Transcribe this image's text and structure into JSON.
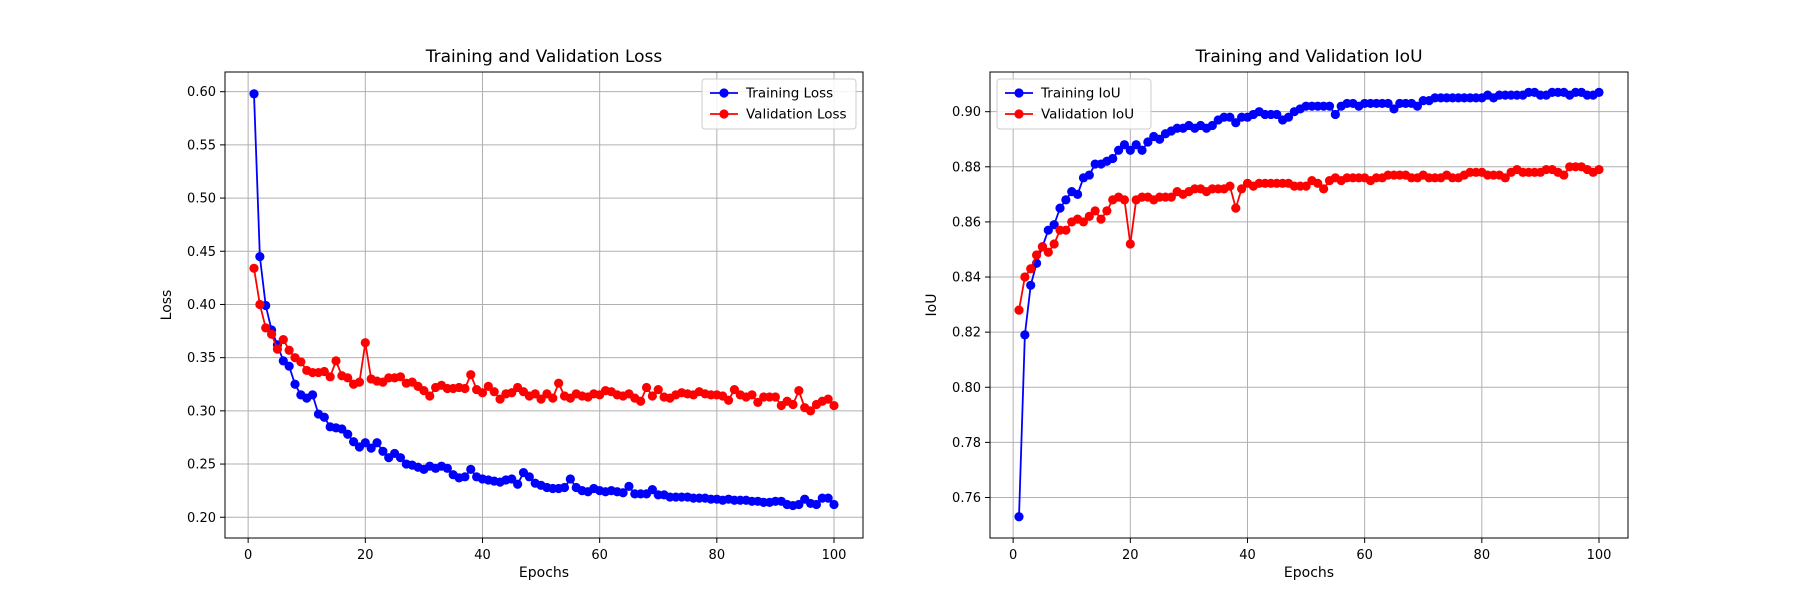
{
  "chart_data": [
    {
      "type": "line",
      "title": "Training and Validation Loss",
      "xlabel": "Epochs",
      "ylabel": "Loss",
      "xlim": [
        -3.95,
        104.95
      ],
      "ylim": [
        0.1805,
        0.6185
      ],
      "xticks": [
        0,
        20,
        40,
        60,
        80,
        100
      ],
      "xtick_labels": [
        "0",
        "20",
        "40",
        "60",
        "80",
        "100"
      ],
      "yticks": [
        0.2,
        0.25,
        0.3,
        0.35,
        0.4,
        0.45,
        0.5,
        0.55,
        0.6
      ],
      "ytick_labels": [
        "0.20",
        "0.25",
        "0.30",
        "0.35",
        "0.40",
        "0.45",
        "0.50",
        "0.55",
        "0.60"
      ],
      "grid": true,
      "legend_position": "top-right",
      "series": [
        {
          "name": "Training Loss",
          "color": "#0000ff",
          "x": [
            1,
            2,
            3,
            4,
            5,
            6,
            7,
            8,
            9,
            10,
            11,
            12,
            13,
            14,
            15,
            16,
            17,
            18,
            19,
            20,
            21,
            22,
            23,
            24,
            25,
            26,
            27,
            28,
            29,
            30,
            31,
            32,
            33,
            34,
            35,
            36,
            37,
            38,
            39,
            40,
            41,
            42,
            43,
            44,
            45,
            46,
            47,
            48,
            49,
            50,
            51,
            52,
            53,
            54,
            55,
            56,
            57,
            58,
            59,
            60,
            61,
            62,
            63,
            64,
            65,
            66,
            67,
            68,
            69,
            70,
            71,
            72,
            73,
            74,
            75,
            76,
            77,
            78,
            79,
            80,
            81,
            82,
            83,
            84,
            85,
            86,
            87,
            88,
            89,
            90,
            91,
            92,
            93,
            94,
            95,
            96,
            97,
            98,
            99,
            100
          ],
          "values": [
            0.598,
            0.445,
            0.399,
            0.376,
            0.362,
            0.347,
            0.342,
            0.325,
            0.315,
            0.312,
            0.315,
            0.297,
            0.294,
            0.285,
            0.284,
            0.283,
            0.278,
            0.271,
            0.266,
            0.27,
            0.265,
            0.27,
            0.262,
            0.256,
            0.26,
            0.256,
            0.25,
            0.249,
            0.247,
            0.245,
            0.248,
            0.246,
            0.248,
            0.246,
            0.24,
            0.237,
            0.238,
            0.245,
            0.238,
            0.236,
            0.235,
            0.234,
            0.233,
            0.235,
            0.236,
            0.231,
            0.242,
            0.238,
            0.232,
            0.23,
            0.228,
            0.227,
            0.227,
            0.228,
            0.236,
            0.228,
            0.225,
            0.224,
            0.227,
            0.225,
            0.224,
            0.225,
            0.224,
            0.223,
            0.229,
            0.222,
            0.222,
            0.222,
            0.226,
            0.221,
            0.221,
            0.219,
            0.219,
            0.219,
            0.219,
            0.218,
            0.218,
            0.218,
            0.217,
            0.217,
            0.216,
            0.217,
            0.216,
            0.216,
            0.216,
            0.215,
            0.215,
            0.214,
            0.214,
            0.215,
            0.215,
            0.212,
            0.211,
            0.212,
            0.217,
            0.213,
            0.212,
            0.218,
            0.218,
            0.212
          ]
        },
        {
          "name": "Validation Loss",
          "color": "#ff0000",
          "x": [
            1,
            2,
            3,
            4,
            5,
            6,
            7,
            8,
            9,
            10,
            11,
            12,
            13,
            14,
            15,
            16,
            17,
            18,
            19,
            20,
            21,
            22,
            23,
            24,
            25,
            26,
            27,
            28,
            29,
            30,
            31,
            32,
            33,
            34,
            35,
            36,
            37,
            38,
            39,
            40,
            41,
            42,
            43,
            44,
            45,
            46,
            47,
            48,
            49,
            50,
            51,
            52,
            53,
            54,
            55,
            56,
            57,
            58,
            59,
            60,
            61,
            62,
            63,
            64,
            65,
            66,
            67,
            68,
            69,
            70,
            71,
            72,
            73,
            74,
            75,
            76,
            77,
            78,
            79,
            80,
            81,
            82,
            83,
            84,
            85,
            86,
            87,
            88,
            89,
            90,
            91,
            92,
            93,
            94,
            95,
            96,
            97,
            98,
            99,
            100
          ],
          "values": [
            0.434,
            0.4,
            0.378,
            0.372,
            0.358,
            0.367,
            0.357,
            0.35,
            0.346,
            0.338,
            0.336,
            0.336,
            0.337,
            0.332,
            0.347,
            0.333,
            0.331,
            0.325,
            0.327,
            0.364,
            0.33,
            0.328,
            0.327,
            0.331,
            0.331,
            0.332,
            0.326,
            0.327,
            0.323,
            0.319,
            0.314,
            0.322,
            0.324,
            0.321,
            0.321,
            0.322,
            0.321,
            0.334,
            0.32,
            0.317,
            0.323,
            0.318,
            0.311,
            0.316,
            0.317,
            0.322,
            0.318,
            0.314,
            0.316,
            0.311,
            0.316,
            0.312,
            0.326,
            0.314,
            0.312,
            0.316,
            0.314,
            0.313,
            0.316,
            0.315,
            0.319,
            0.318,
            0.315,
            0.314,
            0.316,
            0.312,
            0.309,
            0.322,
            0.314,
            0.32,
            0.313,
            0.312,
            0.315,
            0.317,
            0.316,
            0.315,
            0.318,
            0.316,
            0.315,
            0.315,
            0.314,
            0.31,
            0.32,
            0.315,
            0.313,
            0.315,
            0.308,
            0.313,
            0.313,
            0.313,
            0.305,
            0.309,
            0.306,
            0.319,
            0.303,
            0.3,
            0.306,
            0.309,
            0.311,
            0.305
          ]
        }
      ]
    },
    {
      "type": "line",
      "title": "Training and Validation IoU",
      "xlabel": "Epochs",
      "ylabel": "IoU",
      "xlim": [
        -3.95,
        104.95
      ],
      "ylim": [
        0.7453,
        0.9144
      ],
      "xticks": [
        0,
        20,
        40,
        60,
        80,
        100
      ],
      "xtick_labels": [
        "0",
        "20",
        "40",
        "60",
        "80",
        "100"
      ],
      "yticks": [
        0.76,
        0.78,
        0.8,
        0.82,
        0.84,
        0.86,
        0.88,
        0.9
      ],
      "ytick_labels": [
        "0.76",
        "0.78",
        "0.80",
        "0.82",
        "0.84",
        "0.86",
        "0.88",
        "0.90"
      ],
      "grid": true,
      "legend_position": "top-left",
      "series": [
        {
          "name": "Training IoU",
          "color": "#0000ff",
          "x": [
            1,
            2,
            3,
            4,
            5,
            6,
            7,
            8,
            9,
            10,
            11,
            12,
            13,
            14,
            15,
            16,
            17,
            18,
            19,
            20,
            21,
            22,
            23,
            24,
            25,
            26,
            27,
            28,
            29,
            30,
            31,
            32,
            33,
            34,
            35,
            36,
            37,
            38,
            39,
            40,
            41,
            42,
            43,
            44,
            45,
            46,
            47,
            48,
            49,
            50,
            51,
            52,
            53,
            54,
            55,
            56,
            57,
            58,
            59,
            60,
            61,
            62,
            63,
            64,
            65,
            66,
            67,
            68,
            69,
            70,
            71,
            72,
            73,
            74,
            75,
            76,
            77,
            78,
            79,
            80,
            81,
            82,
            83,
            84,
            85,
            86,
            87,
            88,
            89,
            90,
            91,
            92,
            93,
            94,
            95,
            96,
            97,
            98,
            99,
            100
          ],
          "values": [
            0.753,
            0.819,
            0.837,
            0.845,
            0.851,
            0.857,
            0.859,
            0.865,
            0.868,
            0.871,
            0.87,
            0.876,
            0.877,
            0.881,
            0.881,
            0.882,
            0.883,
            0.886,
            0.888,
            0.886,
            0.888,
            0.886,
            0.889,
            0.891,
            0.89,
            0.892,
            0.893,
            0.894,
            0.894,
            0.895,
            0.894,
            0.895,
            0.894,
            0.895,
            0.897,
            0.898,
            0.898,
            0.896,
            0.898,
            0.898,
            0.899,
            0.9,
            0.899,
            0.899,
            0.899,
            0.897,
            0.898,
            0.9,
            0.901,
            0.902,
            0.902,
            0.902,
            0.902,
            0.902,
            0.899,
            0.902,
            0.903,
            0.903,
            0.902,
            0.903,
            0.903,
            0.903,
            0.903,
            0.903,
            0.901,
            0.903,
            0.903,
            0.903,
            0.902,
            0.904,
            0.904,
            0.905,
            0.905,
            0.905,
            0.905,
            0.905,
            0.905,
            0.905,
            0.905,
            0.905,
            0.906,
            0.905,
            0.906,
            0.906,
            0.906,
            0.906,
            0.906,
            0.907,
            0.907,
            0.906,
            0.906,
            0.907,
            0.907,
            0.907,
            0.906,
            0.907,
            0.907,
            0.906,
            0.906,
            0.907
          ]
        },
        {
          "name": "Validation IoU",
          "color": "#ff0000",
          "x": [
            1,
            2,
            3,
            4,
            5,
            6,
            7,
            8,
            9,
            10,
            11,
            12,
            13,
            14,
            15,
            16,
            17,
            18,
            19,
            20,
            21,
            22,
            23,
            24,
            25,
            26,
            27,
            28,
            29,
            30,
            31,
            32,
            33,
            34,
            35,
            36,
            37,
            38,
            39,
            40,
            41,
            42,
            43,
            44,
            45,
            46,
            47,
            48,
            49,
            50,
            51,
            52,
            53,
            54,
            55,
            56,
            57,
            58,
            59,
            60,
            61,
            62,
            63,
            64,
            65,
            66,
            67,
            68,
            69,
            70,
            71,
            72,
            73,
            74,
            75,
            76,
            77,
            78,
            79,
            80,
            81,
            82,
            83,
            84,
            85,
            86,
            87,
            88,
            89,
            90,
            91,
            92,
            93,
            94,
            95,
            96,
            97,
            98,
            99,
            100
          ],
          "values": [
            0.828,
            0.84,
            0.843,
            0.848,
            0.851,
            0.849,
            0.852,
            0.857,
            0.857,
            0.86,
            0.861,
            0.86,
            0.862,
            0.864,
            0.861,
            0.864,
            0.868,
            0.869,
            0.868,
            0.852,
            0.868,
            0.869,
            0.869,
            0.868,
            0.869,
            0.869,
            0.869,
            0.871,
            0.87,
            0.871,
            0.872,
            0.872,
            0.871,
            0.872,
            0.872,
            0.872,
            0.873,
            0.865,
            0.872,
            0.874,
            0.873,
            0.874,
            0.874,
            0.874,
            0.874,
            0.874,
            0.874,
            0.873,
            0.873,
            0.873,
            0.875,
            0.874,
            0.872,
            0.875,
            0.876,
            0.875,
            0.876,
            0.876,
            0.876,
            0.876,
            0.875,
            0.876,
            0.876,
            0.877,
            0.877,
            0.877,
            0.877,
            0.876,
            0.876,
            0.877,
            0.876,
            0.876,
            0.876,
            0.877,
            0.876,
            0.876,
            0.877,
            0.878,
            0.878,
            0.878,
            0.877,
            0.877,
            0.877,
            0.876,
            0.878,
            0.879,
            0.878,
            0.878,
            0.878,
            0.878,
            0.879,
            0.879,
            0.878,
            0.877,
            0.88,
            0.88,
            0.88,
            0.879,
            0.878,
            0.879
          ]
        }
      ]
    }
  ]
}
